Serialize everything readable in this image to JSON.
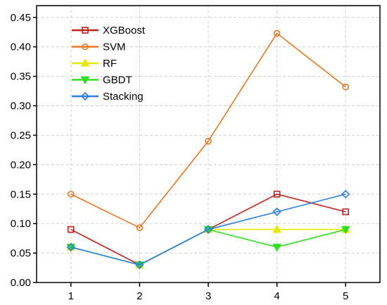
{
  "chart_data": {
    "type": "line",
    "title": "",
    "xlabel": "",
    "ylabel": "",
    "x": [
      1,
      2,
      3,
      4,
      5
    ],
    "x_ticks": [
      "1",
      "2",
      "3",
      "4",
      "5"
    ],
    "y_ticks": [
      "0.00",
      "0.05",
      "0.10",
      "0.15",
      "0.20",
      "0.25",
      "0.30",
      "0.35",
      "0.40",
      "0.45"
    ],
    "xlim": [
      0.5,
      5.5
    ],
    "ylim": [
      0,
      0.47
    ],
    "grid": true,
    "legend_position": "top-left",
    "series": [
      {
        "name": "XGBoost",
        "color": "#c0201c",
        "marker": "square",
        "values": [
          0.09,
          0.03,
          0.09,
          0.15,
          0.12
        ]
      },
      {
        "name": "SVM",
        "color": "#e87722",
        "marker": "circle",
        "values": [
          0.15,
          0.093,
          0.24,
          0.423,
          0.332
        ]
      },
      {
        "name": "RF",
        "color": "#e8e800",
        "marker": "triangle-up",
        "values": [
          0.06,
          0.03,
          0.09,
          0.09,
          0.09
        ]
      },
      {
        "name": "GBDT",
        "color": "#33dd22",
        "marker": "triangle-down",
        "values": [
          0.06,
          0.03,
          0.09,
          0.06,
          0.09
        ]
      },
      {
        "name": "Stacking",
        "color": "#2a7fe0",
        "marker": "diamond",
        "values": [
          0.06,
          0.03,
          0.09,
          0.12,
          0.15
        ]
      }
    ]
  }
}
